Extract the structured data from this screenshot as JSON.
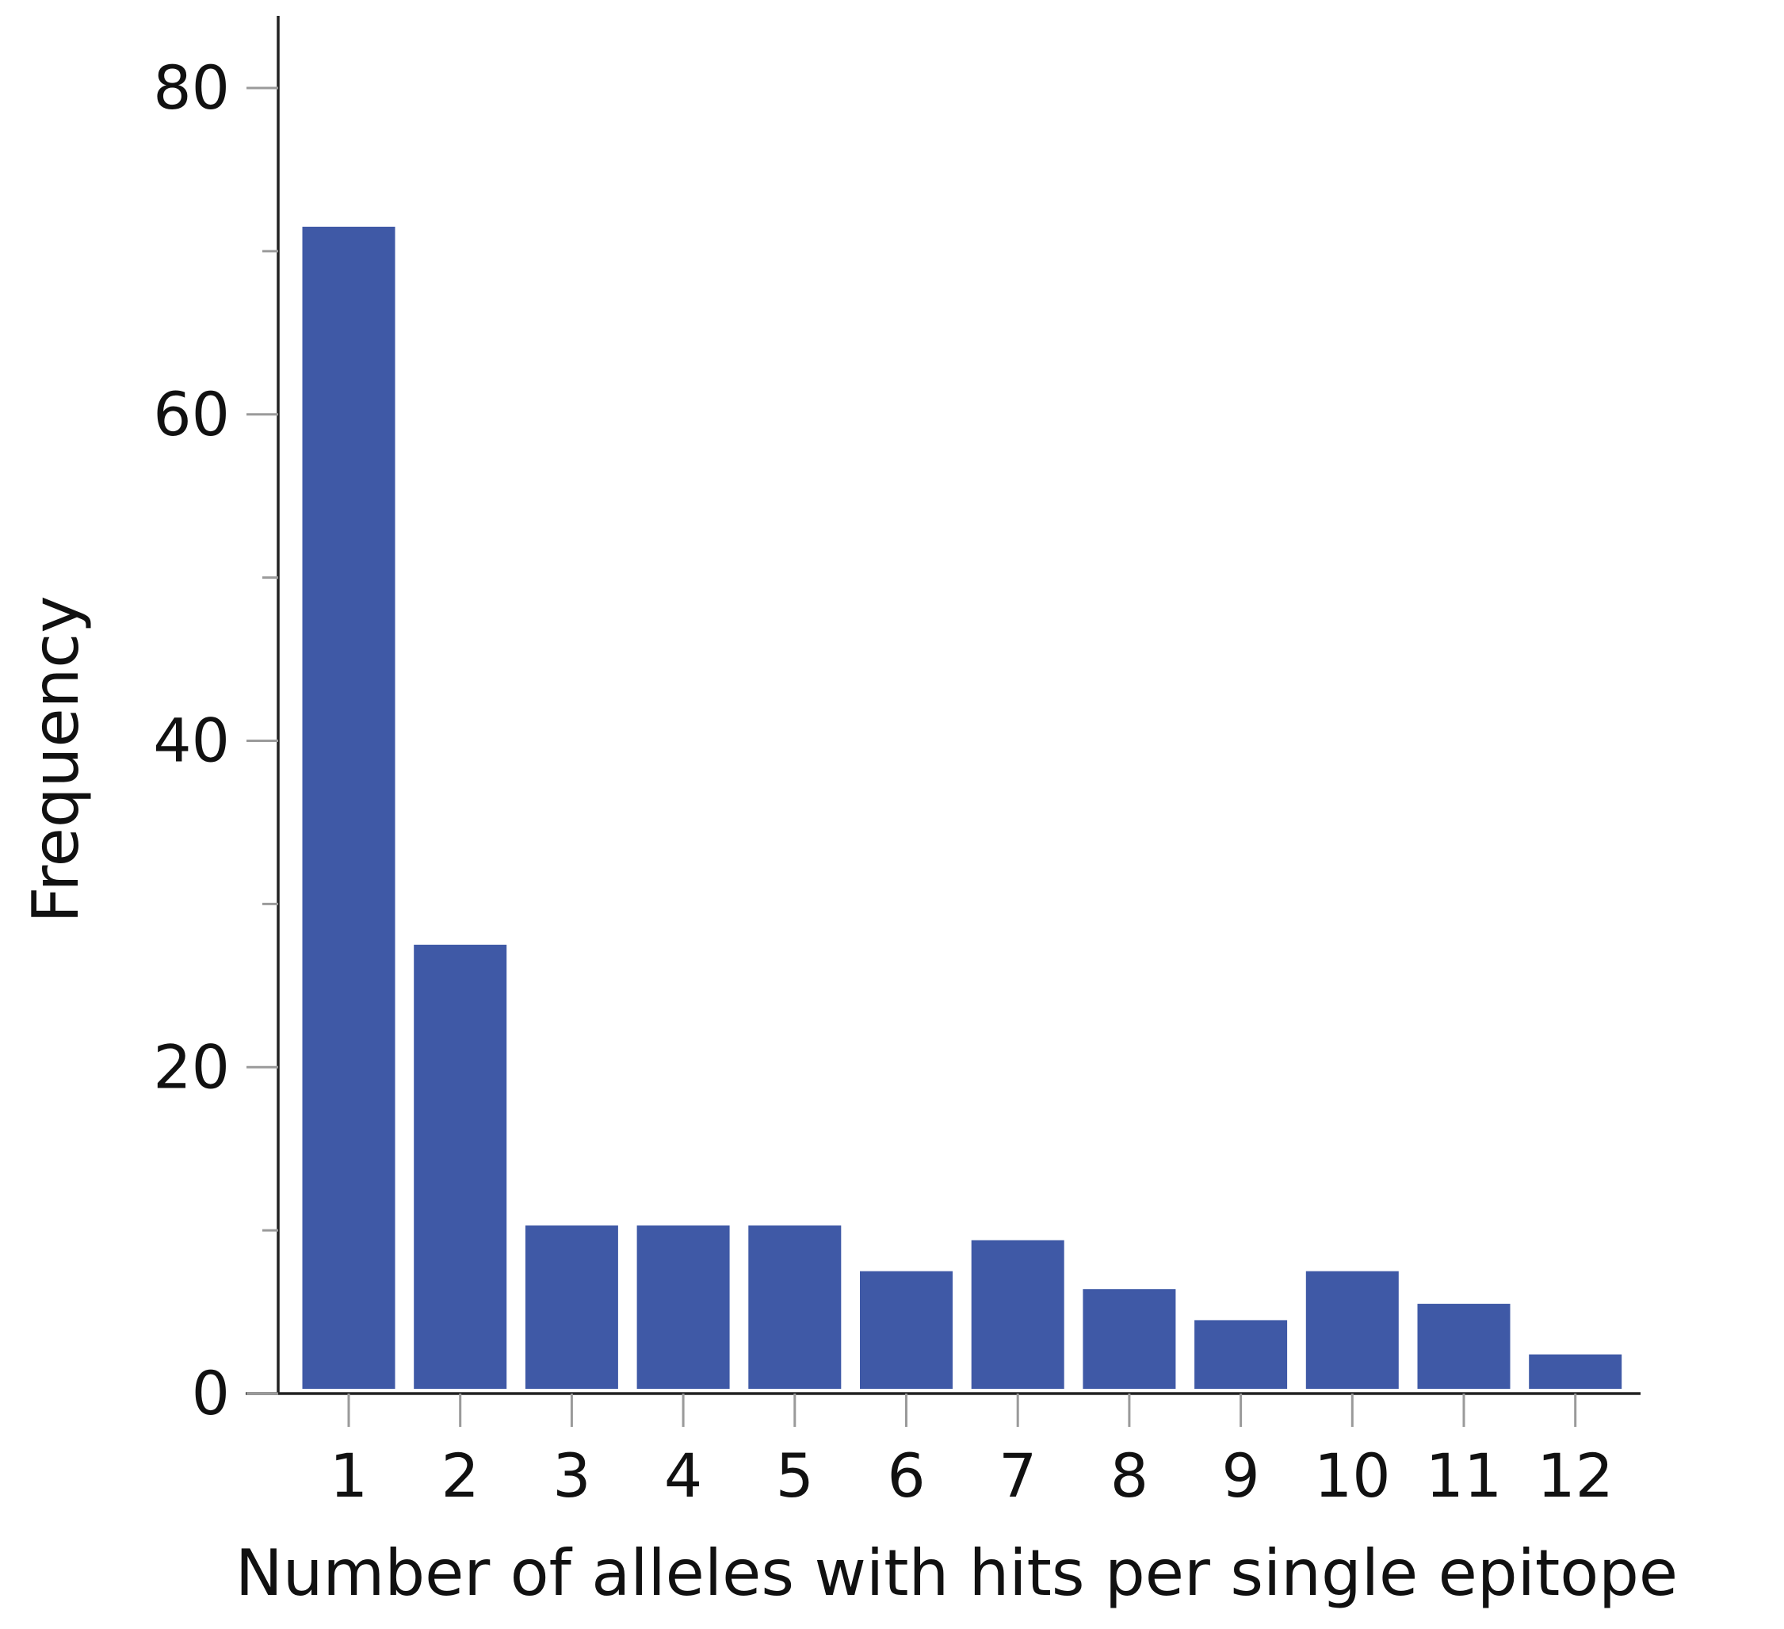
{
  "chart_data": {
    "type": "bar",
    "categories": [
      "1",
      "2",
      "3",
      "4",
      "5",
      "6",
      "7",
      "8",
      "9",
      "10",
      "11",
      "12"
    ],
    "values": [
      71.5,
      27.5,
      10.3,
      10.3,
      10.3,
      7.5,
      9.4,
      6.4,
      4.5,
      7.5,
      5.5,
      2.4
    ],
    "xlabel": "Number of alleles with hits per single epitope",
    "ylabel": "Frequency",
    "ylim": [
      0,
      84
    ],
    "yticks": [
      0,
      20,
      40,
      60,
      80
    ],
    "ytick_labels": [
      "0",
      "20",
      "40",
      "60",
      "80"
    ],
    "y_minor_ticks": [
      10,
      30,
      50,
      70
    ],
    "grid": false,
    "legend": "none",
    "bar_color": "#3f59a6"
  }
}
